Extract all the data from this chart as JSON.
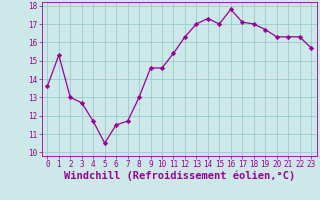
{
  "x": [
    0,
    1,
    2,
    3,
    4,
    5,
    6,
    7,
    8,
    9,
    10,
    11,
    12,
    13,
    14,
    15,
    16,
    17,
    18,
    19,
    20,
    21,
    22,
    23
  ],
  "y": [
    13.6,
    15.3,
    13.0,
    12.7,
    11.7,
    10.5,
    11.5,
    11.7,
    13.0,
    14.6,
    14.6,
    15.4,
    16.3,
    17.0,
    17.3,
    17.0,
    17.8,
    17.1,
    17.0,
    16.7,
    16.3,
    16.3,
    16.3,
    15.7
  ],
  "line_color": "#990099",
  "marker": "D",
  "marker_size": 2.2,
  "bg_color": "#cce8e8",
  "grid_color": "#99cccc",
  "xlabel": "Windchill (Refroidissement éolien,°C)",
  "xlabel_color": "#990099",
  "ylim": [
    9.8,
    18.2
  ],
  "xlim": [
    -0.5,
    23.5
  ],
  "yticks": [
    10,
    11,
    12,
    13,
    14,
    15,
    16,
    17,
    18
  ],
  "xticks": [
    0,
    1,
    2,
    3,
    4,
    5,
    6,
    7,
    8,
    9,
    10,
    11,
    12,
    13,
    14,
    15,
    16,
    17,
    18,
    19,
    20,
    21,
    22,
    23
  ],
  "tick_color": "#990099",
  "tick_fontsize": 5.5,
  "xlabel_fontsize": 7.5,
  "linewidth": 0.9
}
